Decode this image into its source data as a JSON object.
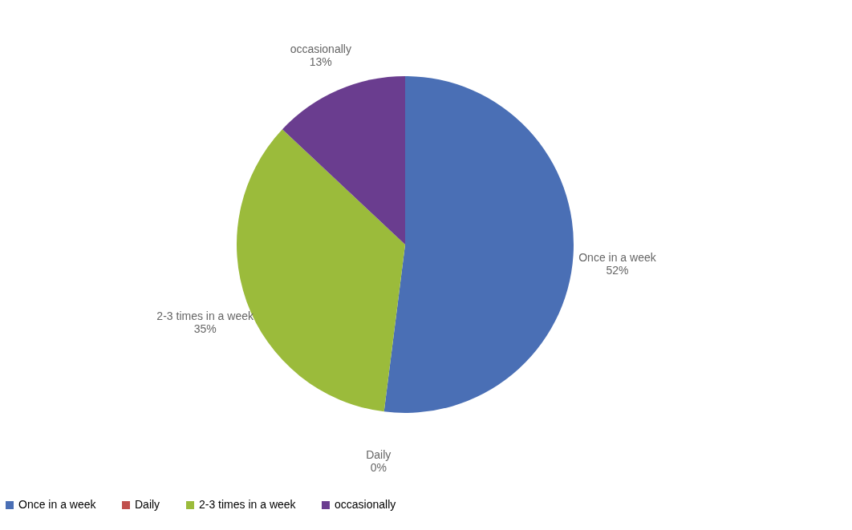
{
  "chart_data": {
    "type": "pie",
    "categories": [
      "Once in a week",
      "Daily",
      "2-3 times in a week",
      "occasionally"
    ],
    "values": [
      52,
      0,
      35,
      13
    ],
    "value_labels": [
      "52%",
      "0%",
      "35%",
      "13%"
    ],
    "colors": [
      "#4a6fb5",
      "#c0504d",
      "#9bbb3b",
      "#6a3d8f"
    ],
    "legend": "bottom"
  }
}
